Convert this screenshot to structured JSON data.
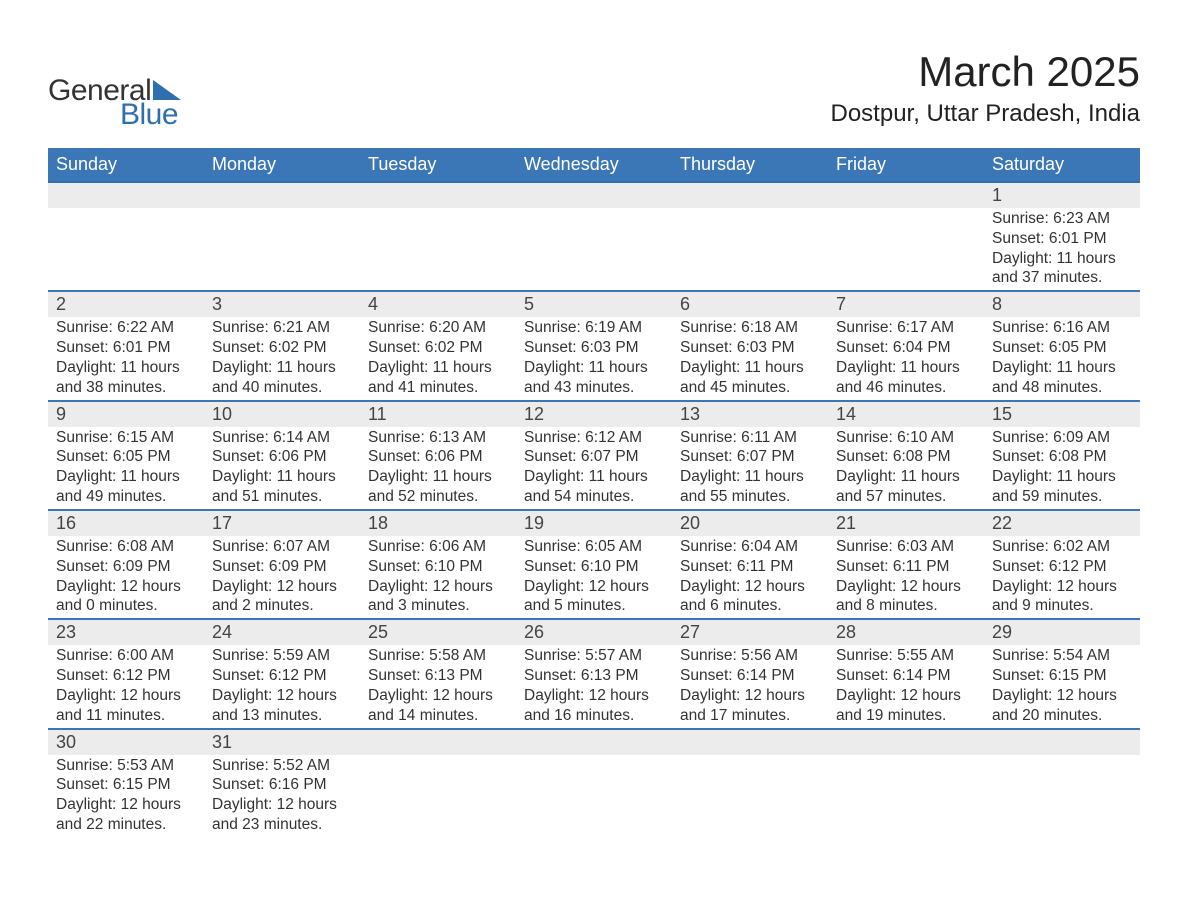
{
  "logo": {
    "line1": "General",
    "line2": "Blue",
    "accent_color": "#2f6fb0"
  },
  "title": "March 2025",
  "subtitle": "Dostpur, Uttar Pradesh, India",
  "colors": {
    "header_bg": "#3b76b6",
    "header_text": "#ffffff",
    "row_border": "#3b76b6",
    "daynum_bg": "#ececec",
    "text": "#333333",
    "page_bg": "#ffffff"
  },
  "weekdays": [
    "Sunday",
    "Monday",
    "Tuesday",
    "Wednesday",
    "Thursday",
    "Friday",
    "Saturday"
  ],
  "weeks": [
    [
      null,
      null,
      null,
      null,
      null,
      null,
      {
        "n": "1",
        "sunrise": "Sunrise: 6:23 AM",
        "sunset": "Sunset: 6:01 PM",
        "d1": "Daylight: 11 hours",
        "d2": "and 37 minutes."
      }
    ],
    [
      {
        "n": "2",
        "sunrise": "Sunrise: 6:22 AM",
        "sunset": "Sunset: 6:01 PM",
        "d1": "Daylight: 11 hours",
        "d2": "and 38 minutes."
      },
      {
        "n": "3",
        "sunrise": "Sunrise: 6:21 AM",
        "sunset": "Sunset: 6:02 PM",
        "d1": "Daylight: 11 hours",
        "d2": "and 40 minutes."
      },
      {
        "n": "4",
        "sunrise": "Sunrise: 6:20 AM",
        "sunset": "Sunset: 6:02 PM",
        "d1": "Daylight: 11 hours",
        "d2": "and 41 minutes."
      },
      {
        "n": "5",
        "sunrise": "Sunrise: 6:19 AM",
        "sunset": "Sunset: 6:03 PM",
        "d1": "Daylight: 11 hours",
        "d2": "and 43 minutes."
      },
      {
        "n": "6",
        "sunrise": "Sunrise: 6:18 AM",
        "sunset": "Sunset: 6:03 PM",
        "d1": "Daylight: 11 hours",
        "d2": "and 45 minutes."
      },
      {
        "n": "7",
        "sunrise": "Sunrise: 6:17 AM",
        "sunset": "Sunset: 6:04 PM",
        "d1": "Daylight: 11 hours",
        "d2": "and 46 minutes."
      },
      {
        "n": "8",
        "sunrise": "Sunrise: 6:16 AM",
        "sunset": "Sunset: 6:05 PM",
        "d1": "Daylight: 11 hours",
        "d2": "and 48 minutes."
      }
    ],
    [
      {
        "n": "9",
        "sunrise": "Sunrise: 6:15 AM",
        "sunset": "Sunset: 6:05 PM",
        "d1": "Daylight: 11 hours",
        "d2": "and 49 minutes."
      },
      {
        "n": "10",
        "sunrise": "Sunrise: 6:14 AM",
        "sunset": "Sunset: 6:06 PM",
        "d1": "Daylight: 11 hours",
        "d2": "and 51 minutes."
      },
      {
        "n": "11",
        "sunrise": "Sunrise: 6:13 AM",
        "sunset": "Sunset: 6:06 PM",
        "d1": "Daylight: 11 hours",
        "d2": "and 52 minutes."
      },
      {
        "n": "12",
        "sunrise": "Sunrise: 6:12 AM",
        "sunset": "Sunset: 6:07 PM",
        "d1": "Daylight: 11 hours",
        "d2": "and 54 minutes."
      },
      {
        "n": "13",
        "sunrise": "Sunrise: 6:11 AM",
        "sunset": "Sunset: 6:07 PM",
        "d1": "Daylight: 11 hours",
        "d2": "and 55 minutes."
      },
      {
        "n": "14",
        "sunrise": "Sunrise: 6:10 AM",
        "sunset": "Sunset: 6:08 PM",
        "d1": "Daylight: 11 hours",
        "d2": "and 57 minutes."
      },
      {
        "n": "15",
        "sunrise": "Sunrise: 6:09 AM",
        "sunset": "Sunset: 6:08 PM",
        "d1": "Daylight: 11 hours",
        "d2": "and 59 minutes."
      }
    ],
    [
      {
        "n": "16",
        "sunrise": "Sunrise: 6:08 AM",
        "sunset": "Sunset: 6:09 PM",
        "d1": "Daylight: 12 hours",
        "d2": "and 0 minutes."
      },
      {
        "n": "17",
        "sunrise": "Sunrise: 6:07 AM",
        "sunset": "Sunset: 6:09 PM",
        "d1": "Daylight: 12 hours",
        "d2": "and 2 minutes."
      },
      {
        "n": "18",
        "sunrise": "Sunrise: 6:06 AM",
        "sunset": "Sunset: 6:10 PM",
        "d1": "Daylight: 12 hours",
        "d2": "and 3 minutes."
      },
      {
        "n": "19",
        "sunrise": "Sunrise: 6:05 AM",
        "sunset": "Sunset: 6:10 PM",
        "d1": "Daylight: 12 hours",
        "d2": "and 5 minutes."
      },
      {
        "n": "20",
        "sunrise": "Sunrise: 6:04 AM",
        "sunset": "Sunset: 6:11 PM",
        "d1": "Daylight: 12 hours",
        "d2": "and 6 minutes."
      },
      {
        "n": "21",
        "sunrise": "Sunrise: 6:03 AM",
        "sunset": "Sunset: 6:11 PM",
        "d1": "Daylight: 12 hours",
        "d2": "and 8 minutes."
      },
      {
        "n": "22",
        "sunrise": "Sunrise: 6:02 AM",
        "sunset": "Sunset: 6:12 PM",
        "d1": "Daylight: 12 hours",
        "d2": "and 9 minutes."
      }
    ],
    [
      {
        "n": "23",
        "sunrise": "Sunrise: 6:00 AM",
        "sunset": "Sunset: 6:12 PM",
        "d1": "Daylight: 12 hours",
        "d2": "and 11 minutes."
      },
      {
        "n": "24",
        "sunrise": "Sunrise: 5:59 AM",
        "sunset": "Sunset: 6:12 PM",
        "d1": "Daylight: 12 hours",
        "d2": "and 13 minutes."
      },
      {
        "n": "25",
        "sunrise": "Sunrise: 5:58 AM",
        "sunset": "Sunset: 6:13 PM",
        "d1": "Daylight: 12 hours",
        "d2": "and 14 minutes."
      },
      {
        "n": "26",
        "sunrise": "Sunrise: 5:57 AM",
        "sunset": "Sunset: 6:13 PM",
        "d1": "Daylight: 12 hours",
        "d2": "and 16 minutes."
      },
      {
        "n": "27",
        "sunrise": "Sunrise: 5:56 AM",
        "sunset": "Sunset: 6:14 PM",
        "d1": "Daylight: 12 hours",
        "d2": "and 17 minutes."
      },
      {
        "n": "28",
        "sunrise": "Sunrise: 5:55 AM",
        "sunset": "Sunset: 6:14 PM",
        "d1": "Daylight: 12 hours",
        "d2": "and 19 minutes."
      },
      {
        "n": "29",
        "sunrise": "Sunrise: 5:54 AM",
        "sunset": "Sunset: 6:15 PM",
        "d1": "Daylight: 12 hours",
        "d2": "and 20 minutes."
      }
    ],
    [
      {
        "n": "30",
        "sunrise": "Sunrise: 5:53 AM",
        "sunset": "Sunset: 6:15 PM",
        "d1": "Daylight: 12 hours",
        "d2": "and 22 minutes."
      },
      {
        "n": "31",
        "sunrise": "Sunrise: 5:52 AM",
        "sunset": "Sunset: 6:16 PM",
        "d1": "Daylight: 12 hours",
        "d2": "and 23 minutes."
      },
      null,
      null,
      null,
      null,
      null
    ]
  ]
}
